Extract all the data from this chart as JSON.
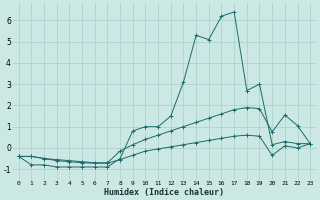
{
  "xlabel": "Humidex (Indice chaleur)",
  "xlim": [
    -0.5,
    23.5
  ],
  "ylim": [
    -1.5,
    6.8
  ],
  "xticks": [
    0,
    1,
    2,
    3,
    4,
    5,
    6,
    7,
    8,
    9,
    10,
    11,
    12,
    13,
    14,
    15,
    16,
    17,
    18,
    19,
    20,
    21,
    22,
    23
  ],
  "yticks": [
    -1,
    0,
    1,
    2,
    3,
    4,
    5,
    6
  ],
  "bg_color": "#cce8e4",
  "grid_color": "#aacfcc",
  "line_color": "#1a6b6b",
  "line1_x": [
    0,
    1,
    2,
    3,
    4,
    5,
    6,
    7,
    8,
    9,
    10,
    11,
    12,
    13,
    14,
    15,
    16,
    17,
    18,
    19,
    20,
    21,
    22,
    23
  ],
  "line1_y": [
    -0.4,
    -0.8,
    -0.8,
    -0.9,
    -0.9,
    -0.9,
    -0.9,
    -0.9,
    -0.5,
    0.8,
    1.0,
    1.0,
    1.5,
    3.1,
    5.3,
    5.1,
    6.2,
    6.4,
    2.7,
    3.0,
    0.15,
    0.3,
    0.2,
    0.2
  ],
  "line2_x": [
    0,
    1,
    2,
    3,
    4,
    5,
    6,
    7,
    8,
    9,
    10,
    11,
    12,
    13,
    14,
    15,
    16,
    17,
    18,
    19,
    20,
    21,
    22,
    23
  ],
  "line2_y": [
    -0.4,
    -0.4,
    -0.5,
    -0.55,
    -0.6,
    -0.65,
    -0.7,
    -0.7,
    -0.15,
    0.15,
    0.4,
    0.6,
    0.8,
    1.0,
    1.2,
    1.4,
    1.6,
    1.8,
    1.9,
    1.85,
    0.75,
    1.55,
    1.05,
    0.2
  ],
  "line3_x": [
    0,
    1,
    2,
    3,
    4,
    5,
    6,
    7,
    8,
    9,
    10,
    11,
    12,
    13,
    14,
    15,
    16,
    17,
    18,
    19,
    20,
    21,
    22,
    23
  ],
  "line3_y": [
    -0.4,
    -0.4,
    -0.5,
    -0.6,
    -0.65,
    -0.7,
    -0.72,
    -0.72,
    -0.55,
    -0.35,
    -0.15,
    -0.05,
    0.05,
    0.15,
    0.25,
    0.35,
    0.45,
    0.55,
    0.6,
    0.55,
    -0.35,
    0.1,
    0.0,
    0.2
  ]
}
